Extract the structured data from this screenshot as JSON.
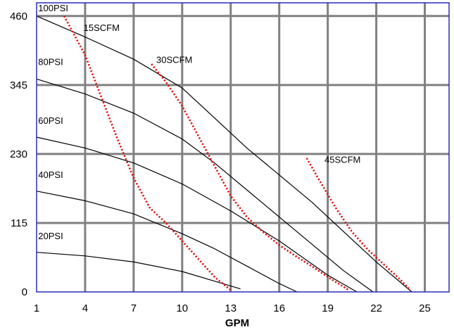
{
  "chart_data": {
    "type": "line",
    "title": "",
    "xlabel": "GPM",
    "ylabel": "",
    "xlim": [
      1,
      26.5
    ],
    "ylim": [
      0,
      482
    ],
    "x_ticks": [
      "1",
      "4",
      "7",
      "10",
      "13",
      "16",
      "19",
      "22",
      "25"
    ],
    "y_ticks": [
      "0",
      "115",
      "230",
      "345",
      "460"
    ],
    "grid": true,
    "colors": {
      "frame": "#2b2bb8",
      "grid": "#808080",
      "pressure": "#000000",
      "scfm": "#e01010"
    },
    "series": [
      {
        "name": "100PSI",
        "kind": "pressure",
        "x": [
          1,
          4,
          7,
          10,
          12,
          14,
          16,
          18,
          20,
          22,
          24.2
        ],
        "y": [
          460,
          425,
          388,
          340,
          290,
          240,
          195,
          150,
          100,
          50,
          0
        ]
      },
      {
        "name": "80PSI",
        "kind": "pressure",
        "x": [
          1,
          4,
          7,
          10,
          12,
          14,
          16,
          18,
          20,
          21.8
        ],
        "y": [
          355,
          330,
          298,
          255,
          215,
          170,
          125,
          80,
          35,
          0
        ]
      },
      {
        "name": "60PSI",
        "kind": "pressure",
        "x": [
          1,
          4,
          7,
          10,
          13,
          16,
          19,
          20.8
        ],
        "y": [
          258,
          240,
          215,
          180,
          135,
          85,
          28,
          0
        ]
      },
      {
        "name": "40PSI",
        "kind": "pressure",
        "x": [
          1,
          4,
          7,
          10,
          12,
          14,
          16,
          17.1
        ],
        "y": [
          168,
          152,
          130,
          97,
          72,
          43,
          14,
          0
        ]
      },
      {
        "name": "20PSI",
        "kind": "pressure",
        "x": [
          1,
          4,
          7,
          10,
          12,
          13.6
        ],
        "y": [
          66,
          60,
          50,
          34,
          18,
          5
        ]
      },
      {
        "name": "15SCFM",
        "kind": "scfm",
        "x": [
          2.7,
          4,
          5,
          6,
          7,
          8,
          9,
          10,
          11,
          12,
          13
        ],
        "y": [
          460,
          395,
          325,
          255,
          190,
          140,
          115,
          85,
          55,
          25,
          3
        ]
      },
      {
        "name": "30SCFM",
        "kind": "scfm",
        "x": [
          8.1,
          9,
          10,
          11,
          12,
          13,
          14,
          15,
          16,
          17,
          18,
          19,
          20.3
        ],
        "y": [
          380,
          350,
          310,
          260,
          210,
          160,
          125,
          100,
          78,
          60,
          43,
          25,
          3
        ]
      },
      {
        "name": "45SCFM",
        "kind": "scfm",
        "x": [
          17.7,
          18.5,
          19.5,
          20.5,
          21.5,
          22.5,
          23.5,
          24.1
        ],
        "y": [
          223,
          185,
          140,
          100,
          70,
          45,
          20,
          3
        ]
      }
    ],
    "curve_labels": [
      {
        "text": "100PSI",
        "x": 1.1,
        "y": 468
      },
      {
        "text": "15SCFM",
        "x": 3.9,
        "y": 435
      },
      {
        "text": "80PSI",
        "x": 1.1,
        "y": 378
      },
      {
        "text": "30SCFM",
        "x": 8.4,
        "y": 382
      },
      {
        "text": "60PSI",
        "x": 1.1,
        "y": 280
      },
      {
        "text": "45SCFM",
        "x": 18.8,
        "y": 215
      },
      {
        "text": "40PSI",
        "x": 1.1,
        "y": 190
      },
      {
        "text": "20PSI",
        "x": 1.1,
        "y": 88
      }
    ]
  }
}
